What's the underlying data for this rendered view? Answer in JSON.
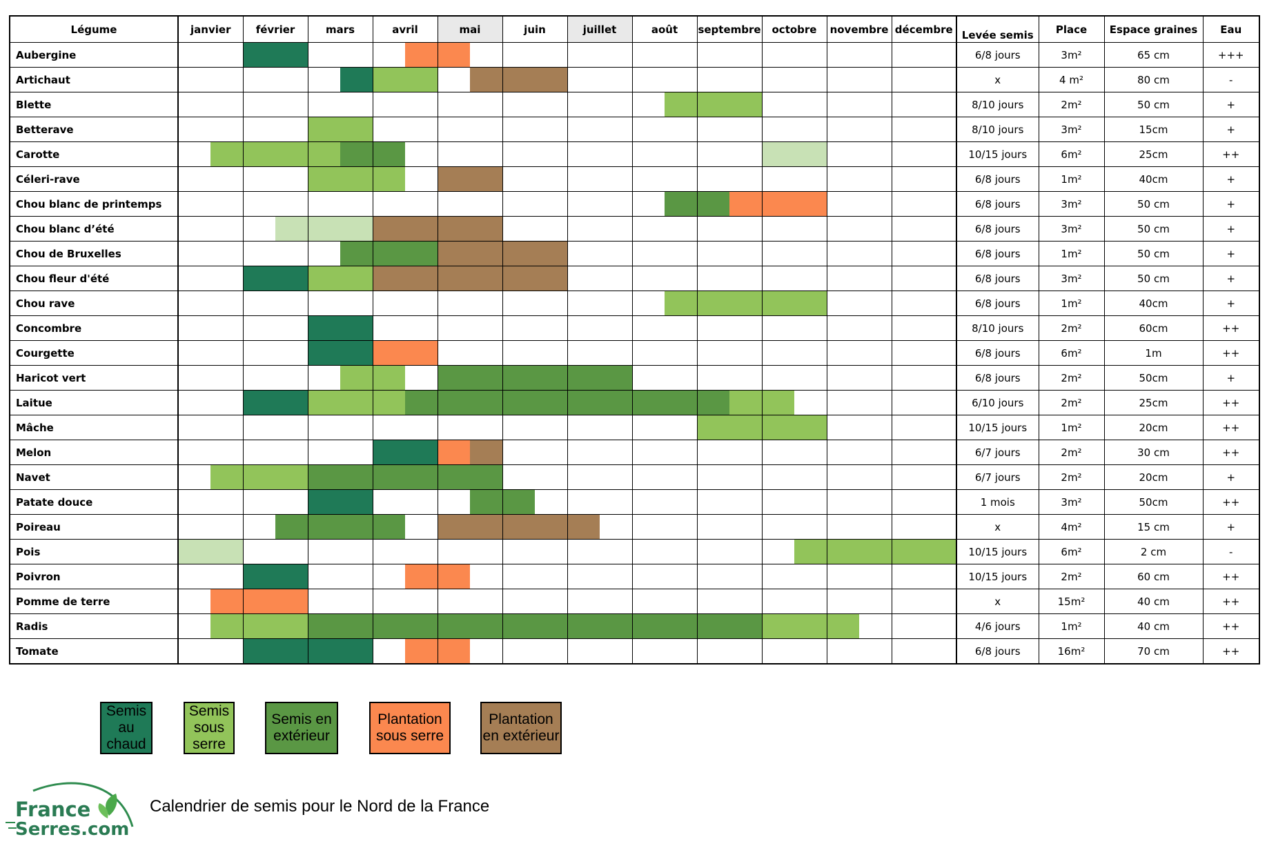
{
  "colors": {
    "semis_chaud": "#1f7a57",
    "semis_serre": "#92c45a",
    "semis_exterieur": "#5a9744",
    "plantation_serre": "#fb884f",
    "plantation_exterieur": "#a57e55",
    "semis_clair": "#c8e1b5"
  },
  "table": {
    "header": {
      "legume": "Légume",
      "months": [
        "janvier",
        "février",
        "mars",
        "avril",
        "mai",
        "juin",
        "juillet",
        "août",
        "septembre",
        "octobre",
        "novembre",
        "décembre"
      ],
      "levee": "Levée semis",
      "place": "Place",
      "espace": "Espace graines",
      "eau": "Eau"
    },
    "rows": [
      {
        "name": "Aubergine",
        "levee": "6/8 jours",
        "place": "3m²",
        "espace": "65 cm",
        "eau": "+++",
        "cells": [
          "",
          "",
          "C",
          "C",
          "",
          "",
          "",
          "O",
          "O",
          "",
          "",
          "",
          "",
          "",
          "",
          "",
          "",
          "",
          "",
          "",
          "",
          "",
          "",
          ""
        ]
      },
      {
        "name": "Artichaut",
        "levee": "x",
        "place": "4 m²",
        "espace": "80 cm",
        "eau": "-",
        "cells": [
          "",
          "",
          "",
          "",
          "",
          "C",
          "S",
          "S",
          "",
          "B",
          "B",
          "B",
          "",
          "",
          "",
          "",
          "",
          "",
          "",
          "",
          "",
          "",
          "",
          ""
        ]
      },
      {
        "name": "Blette",
        "levee": "8/10 jours",
        "place": "2m²",
        "espace": "50 cm",
        "eau": "+",
        "cells": [
          "",
          "",
          "",
          "",
          "",
          "",
          "",
          "",
          "",
          "",
          "",
          "",
          "",
          "",
          "",
          "S",
          "S",
          "S",
          "",
          "",
          "",
          "",
          "",
          ""
        ]
      },
      {
        "name": "Betterave",
        "levee": "8/10 jours",
        "place": "3m²",
        "espace": "15cm",
        "eau": "+",
        "cells": [
          "",
          "",
          "",
          "",
          "S",
          "S",
          "",
          "",
          "",
          "",
          "",
          "",
          "",
          "",
          "",
          "",
          "",
          "",
          "",
          "",
          "",
          "",
          "",
          ""
        ]
      },
      {
        "name": "Carotte",
        "levee": "10/15 jours",
        "place": "6m²",
        "espace": "25cm",
        "eau": "++",
        "cells": [
          "",
          "S",
          "S",
          "S",
          "S",
          "E",
          "E",
          "",
          "",
          "",
          "",
          "",
          "",
          "",
          "",
          "",
          "",
          "",
          "L",
          "L",
          "",
          "",
          "",
          ""
        ]
      },
      {
        "name": "Céleri-rave",
        "levee": "6/8 jours",
        "place": "1m²",
        "espace": "40cm",
        "eau": "+",
        "cells": [
          "",
          "",
          "",
          "",
          "S",
          "S",
          "S",
          "",
          "B",
          "B",
          "",
          "",
          "",
          "",
          "",
          "",
          "",
          "",
          "",
          "",
          "",
          "",
          "",
          ""
        ]
      },
      {
        "name": "Chou blanc de printemps",
        "levee": "6/8 jours",
        "place": "3m²",
        "espace": "50 cm",
        "eau": "+",
        "cells": [
          "",
          "",
          "",
          "",
          "",
          "",
          "",
          "",
          "",
          "",
          "",
          "",
          "",
          "",
          "",
          "E",
          "E",
          "O",
          "O",
          "O",
          "",
          "",
          "",
          ""
        ]
      },
      {
        "name": "Chou blanc d’été",
        "levee": "6/8 jours",
        "place": "3m²",
        "espace": "50 cm",
        "eau": "+",
        "cells": [
          "",
          "",
          "",
          "L",
          "L",
          "L",
          "B",
          "B",
          "B",
          "B",
          "",
          "",
          "",
          "",
          "",
          "",
          "",
          "",
          "",
          "",
          "",
          "",
          "",
          ""
        ]
      },
      {
        "name": "Chou de Bruxelles",
        "levee": "6/8 jours",
        "place": "1m²",
        "espace": "50 cm",
        "eau": "+",
        "cells": [
          "",
          "",
          "",
          "",
          "",
          "E",
          "E",
          "E",
          "B",
          "B",
          "B",
          "B",
          "",
          "",
          "",
          "",
          "",
          "",
          "",
          "",
          "",
          "",
          "",
          ""
        ]
      },
      {
        "name": "Chou fleur d'été",
        "levee": "6/8 jours",
        "place": "3m²",
        "espace": "50 cm",
        "eau": "+",
        "cells": [
          "",
          "",
          "C",
          "C",
          "S",
          "S",
          "B",
          "B",
          "B",
          "B",
          "B",
          "B",
          "",
          "",
          "",
          "",
          "",
          "",
          "",
          "",
          "",
          "",
          "",
          ""
        ]
      },
      {
        "name": "Chou rave",
        "levee": "6/8 jours",
        "place": "1m²",
        "espace": "40cm",
        "eau": "+",
        "cells": [
          "",
          "",
          "",
          "",
          "",
          "",
          "",
          "",
          "",
          "",
          "",
          "",
          "",
          "",
          "",
          "S",
          "S",
          "S",
          "S",
          "S",
          "",
          "",
          "",
          ""
        ]
      },
      {
        "name": "Concombre",
        "levee": "8/10 jours",
        "place": "2m²",
        "espace": "60cm",
        "eau": "++",
        "cells": [
          "",
          "",
          "",
          "",
          "C",
          "C",
          "",
          "",
          "",
          "",
          "",
          "",
          "",
          "",
          "",
          "",
          "",
          "",
          "",
          "",
          "",
          "",
          "",
          ""
        ]
      },
      {
        "name": "Courgette",
        "levee": "6/8 jours",
        "place": "6m²",
        "espace": "1m",
        "eau": "++",
        "cells": [
          "",
          "",
          "",
          "",
          "C",
          "C",
          "O",
          "O",
          "",
          "",
          "",
          "",
          "",
          "",
          "",
          "",
          "",
          "",
          "",
          "",
          "",
          "",
          "",
          ""
        ]
      },
      {
        "name": "Haricot vert",
        "levee": "6/8 jours",
        "place": "2m²",
        "espace": "50cm",
        "eau": "+",
        "cells": [
          "",
          "",
          "",
          "",
          "",
          "S",
          "S",
          "",
          "E",
          "E",
          "E",
          "E",
          "E",
          "E",
          "",
          "",
          "",
          "",
          "",
          "",
          "",
          "",
          "",
          ""
        ]
      },
      {
        "name": "Laitue",
        "levee": "6/10 jours",
        "place": "2m²",
        "espace": "25cm",
        "eau": "++",
        "cells": [
          "",
          "",
          "C",
          "C",
          "S",
          "S",
          "S",
          "E",
          "E",
          "E",
          "E",
          "E",
          "E",
          "E",
          "E",
          "E",
          "E",
          "S",
          "S",
          "",
          "",
          "",
          "",
          ""
        ]
      },
      {
        "name": "Mâche",
        "levee": "10/15 jours",
        "place": "1m²",
        "espace": "20cm",
        "eau": "++",
        "cells": [
          "",
          "",
          "",
          "",
          "",
          "",
          "",
          "",
          "",
          "",
          "",
          "",
          "",
          "",
          "",
          "",
          "S",
          "S",
          "S",
          "S",
          "",
          "",
          "",
          ""
        ]
      },
      {
        "name": "Melon",
        "levee": "6/7 jours",
        "place": "2m²",
        "espace": "30 cm",
        "eau": "++",
        "cells": [
          "",
          "",
          "",
          "",
          "",
          "",
          "C",
          "C",
          "O",
          "B",
          "",
          "",
          "",
          "",
          "",
          "",
          "",
          "",
          "",
          "",
          "",
          "",
          "",
          ""
        ]
      },
      {
        "name": "Navet",
        "levee": "6/7 jours",
        "place": "2m²",
        "espace": "20cm",
        "eau": "+",
        "cells": [
          "",
          "S",
          "S",
          "S",
          "E",
          "E",
          "E",
          "E",
          "E",
          "E",
          "",
          "",
          "",
          "",
          "",
          "",
          "",
          "",
          "",
          "",
          "",
          "",
          "",
          ""
        ]
      },
      {
        "name": "Patate douce",
        "levee": "1 mois",
        "place": "3m²",
        "espace": "50cm",
        "eau": "++",
        "cells": [
          "",
          "",
          "",
          "",
          "C",
          "C",
          "",
          "",
          "",
          "E",
          "E",
          "",
          "",
          "",
          "",
          "",
          "",
          "",
          "",
          "",
          "",
          "",
          "",
          ""
        ]
      },
      {
        "name": "Poireau",
        "levee": "x",
        "place": "4m²",
        "espace": "15 cm",
        "eau": "+",
        "cells": [
          "",
          "",
          "",
          "E",
          "E",
          "E",
          "E",
          "",
          "B",
          "B",
          "B",
          "B",
          "B",
          "",
          "",
          "",
          "",
          "",
          "",
          "",
          "",
          "",
          "",
          ""
        ]
      },
      {
        "name": "Pois",
        "levee": "10/15 jours",
        "place": "6m²",
        "espace": "2 cm",
        "eau": "-",
        "cells": [
          "L",
          "L",
          "",
          "",
          "",
          "",
          "",
          "",
          "",
          "",
          "",
          "",
          "",
          "",
          "",
          "",
          "",
          "",
          "",
          "S",
          "S",
          "S",
          "S",
          "S"
        ]
      },
      {
        "name": "Poivron",
        "levee": "10/15 jours",
        "place": "2m²",
        "espace": "60 cm",
        "eau": "++",
        "cells": [
          "",
          "",
          "C",
          "C",
          "",
          "",
          "",
          "O",
          "O",
          "",
          "",
          "",
          "",
          "",
          "",
          "",
          "",
          "",
          "",
          "",
          "",
          "",
          "",
          ""
        ]
      },
      {
        "name": "Pomme de terre",
        "levee": "x",
        "place": "15m²",
        "espace": "40 cm",
        "eau": "++",
        "cells": [
          "",
          "O",
          "O",
          "O",
          "",
          "",
          "",
          "",
          "",
          "",
          "",
          "",
          "",
          "",
          "",
          "",
          "",
          "",
          "",
          "",
          "",
          "",
          "",
          ""
        ]
      },
      {
        "name": "Radis",
        "levee": "4/6 jours",
        "place": "1m²",
        "espace": "40 cm",
        "eau": "++",
        "cells": [
          "",
          "S",
          "S",
          "S",
          "E",
          "E",
          "E",
          "E",
          "E",
          "E",
          "E",
          "E",
          "E",
          "E",
          "E",
          "E",
          "E",
          "E",
          "S",
          "S",
          "S",
          "",
          "",
          ""
        ]
      },
      {
        "name": "Tomate",
        "levee": "6/8 jours",
        "place": "16m²",
        "espace": "70 cm",
        "eau": "++",
        "cells": [
          "",
          "",
          "C",
          "C",
          "C",
          "C",
          "",
          "O",
          "O",
          "",
          "",
          "",
          "",
          "",
          "",
          "",
          "",
          "",
          "",
          "",
          "",
          "",
          "",
          ""
        ]
      }
    ]
  },
  "legend": [
    {
      "code": "C",
      "label": "Semis au chaud"
    },
    {
      "code": "S",
      "label": "Semis sous serre"
    },
    {
      "code": "E",
      "label": "Semis en extérieur"
    },
    {
      "code": "O",
      "label": "Plantation sous serre"
    },
    {
      "code": "B",
      "label": "Plantation en extérieur"
    }
  ],
  "footer": {
    "logo_line1": "France",
    "logo_line2": "Serres.com",
    "title": "Calendrier de semis pour le Nord de la France"
  }
}
